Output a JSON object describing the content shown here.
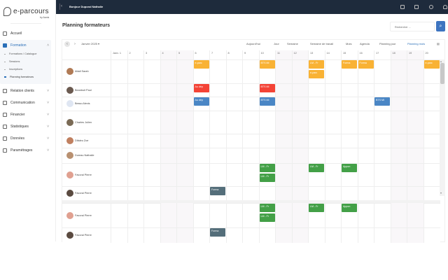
{
  "brand": {
    "name": "e-parcours",
    "by": "by Aanis"
  },
  "sidebar": {
    "items": [
      {
        "label": "Accueil",
        "icon": "home-icon"
      },
      {
        "label": "Formation",
        "icon": "formation-icon",
        "active": true,
        "sub": [
          "Formations / Catalogue",
          "Sessions",
          "Inscriptions",
          "Planning formateurs"
        ]
      },
      {
        "label": "Relation clients",
        "icon": "users-icon"
      },
      {
        "label": "Communication",
        "icon": "chat-icon"
      },
      {
        "label": "Financier",
        "icon": "clock-icon"
      },
      {
        "label": "Statistiques",
        "icon": "chart-icon"
      },
      {
        "label": "Données",
        "icon": "database-icon"
      },
      {
        "label": "Paramétrages",
        "icon": "gear-icon"
      }
    ]
  },
  "topbar": {
    "greeting": "Bonjour Dupond Nathalie",
    "icons": [
      "calendar-icon",
      "note-icon",
      "help-icon",
      "user-icon"
    ]
  },
  "page": {
    "title": "Planning formateurs",
    "search_placeholder": "Rechercher ..."
  },
  "calendar": {
    "month": "Janvier 2025",
    "views": [
      "Aujourd'hui",
      "Jour",
      "Semaine",
      "Semaine de travail",
      "Mois",
      "Agenda",
      "Planning jour",
      "Planning mois"
    ],
    "active_view": "Planning mois",
    "days": [
      "Janv. 1",
      "2",
      "3",
      "4",
      "5",
      "6",
      "7",
      "8",
      "9",
      "10",
      "11",
      "12",
      "13",
      "14",
      "15",
      "16",
      "17",
      "18",
      "19",
      "20"
    ],
    "weekends": [
      4,
      5,
      11,
      12,
      18,
      19
    ],
    "colors": {
      "orange": "#f9b234",
      "red": "#f44336",
      "blue": "#4a86c5",
      "green": "#43a047",
      "slate": "#546e7a"
    },
    "rows": [
      {
        "name": "Attali Sarah",
        "avatar": "#b07a55",
        "events": [
          {
            "day": 6,
            "label": "e-parc",
            "color": "orange"
          },
          {
            "day": 10,
            "label": "BTS MI",
            "color": "orange"
          },
          {
            "day": 13,
            "label": "LM - Fr",
            "color": "orange"
          },
          {
            "day": 13,
            "label": "e-parc",
            "color": "orange",
            "slot": 1
          },
          {
            "day": 15,
            "label": "Forma",
            "color": "orange"
          },
          {
            "day": 16,
            "label": "Forma",
            "color": "orange"
          },
          {
            "day": 20,
            "label": "e-parc",
            "color": "orange"
          }
        ]
      },
      {
        "name": "Beanbuit Paul",
        "avatar": "#6b5a50",
        "events": [
          {
            "day": 6,
            "label": "Au dép",
            "color": "red"
          },
          {
            "day": 10,
            "label": "BTS MI",
            "color": "red"
          }
        ]
      },
      {
        "name": "Besso Alexis",
        "avatar": "#dfe6f2",
        "events": [
          {
            "day": 6,
            "label": "Au dép",
            "color": "blue"
          },
          {
            "day": 10,
            "label": "BTS MI",
            "color": "blue"
          },
          {
            "day": 17,
            "label": "BTS MI",
            "color": "blue"
          }
        ]
      },
      {
        "name": "Charles Julien",
        "avatar": "#7a6a55",
        "events": []
      },
      {
        "name": "Difaleu Zoe",
        "avatar": "#c08060",
        "events": []
      },
      {
        "name": "Dureau Nathalie",
        "avatar": "#b89070",
        "events": []
      },
      {
        "name": "Favoral Pierre",
        "avatar": "#e0a090",
        "events": [
          {
            "day": 10,
            "label": "LM - Fr",
            "color": "green"
          },
          {
            "day": 10,
            "label": "LM - Fr",
            "color": "green",
            "slot": 1
          },
          {
            "day": 13,
            "label": "LM - Fr",
            "color": "green"
          },
          {
            "day": 15,
            "label": "Appon",
            "color": "green"
          }
        ]
      },
      {
        "name": "Favoral Pierre",
        "avatar": "#5a4a40",
        "events": [
          {
            "day": 7,
            "label": "Forma",
            "color": "slate"
          }
        ]
      }
    ]
  }
}
